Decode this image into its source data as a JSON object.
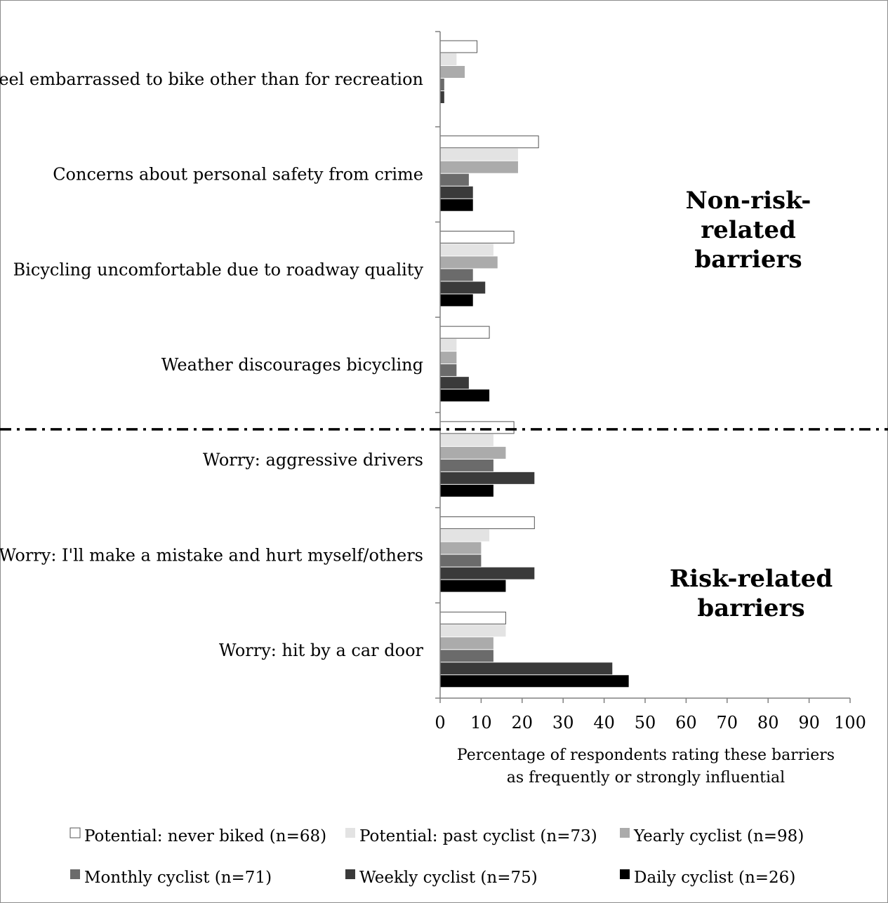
{
  "chart_data": {
    "type": "bar",
    "orientation": "horizontal",
    "categories": [
      "Feel embarrassed to bike other than for recreation",
      "Concerns about personal safety from crime",
      "Bicycling uncomfortable due to roadway quality",
      "Weather discourages bicycling",
      "Worry: aggressive drivers",
      "Worry: I'll make a mistake and hurt myself/others",
      "Worry: hit by a car door"
    ],
    "series": [
      {
        "name": "Potential: never biked (n=68)",
        "color": "#ffffff",
        "values": [
          9,
          24,
          18,
          12,
          18,
          23,
          16
        ]
      },
      {
        "name": "Potential: past cyclist (n=73)",
        "color": "#e3e3e3",
        "values": [
          4,
          19,
          13,
          4,
          13,
          12,
          16
        ]
      },
      {
        "name": "Yearly cyclist (n=98)",
        "color": "#ababab",
        "values": [
          6,
          19,
          14,
          4,
          16,
          10,
          13
        ]
      },
      {
        "name": "Monthly cyclist (n=71)",
        "color": "#6b6b6b",
        "values": [
          1,
          7,
          8,
          4,
          13,
          10,
          13
        ]
      },
      {
        "name": "Weekly cyclist (n=75)",
        "color": "#3a3a3a",
        "values": [
          1,
          8,
          11,
          7,
          23,
          23,
          42
        ]
      },
      {
        "name": "Daily cyclist (n=26)",
        "color": "#000000",
        "values": [
          0,
          8,
          8,
          12,
          13,
          16,
          46
        ]
      }
    ],
    "xlim": [
      0,
      100
    ],
    "xticks": [
      "0",
      "10",
      "20",
      "30",
      "40",
      "50",
      "60",
      "70",
      "80",
      "90",
      "100"
    ],
    "xlabel_lines": [
      "Percentage of respondents rating these barriers",
      "as frequently or strongly influential"
    ],
    "annotations": [
      {
        "lines": [
          "Non-risk-",
          "related",
          "barriers"
        ]
      },
      {
        "lines": [
          "Risk-related",
          "barriers"
        ]
      }
    ],
    "divider": "dash-dot line between non-risk-related and risk-related barriers",
    "grid": false,
    "legend_position": "bottom"
  }
}
